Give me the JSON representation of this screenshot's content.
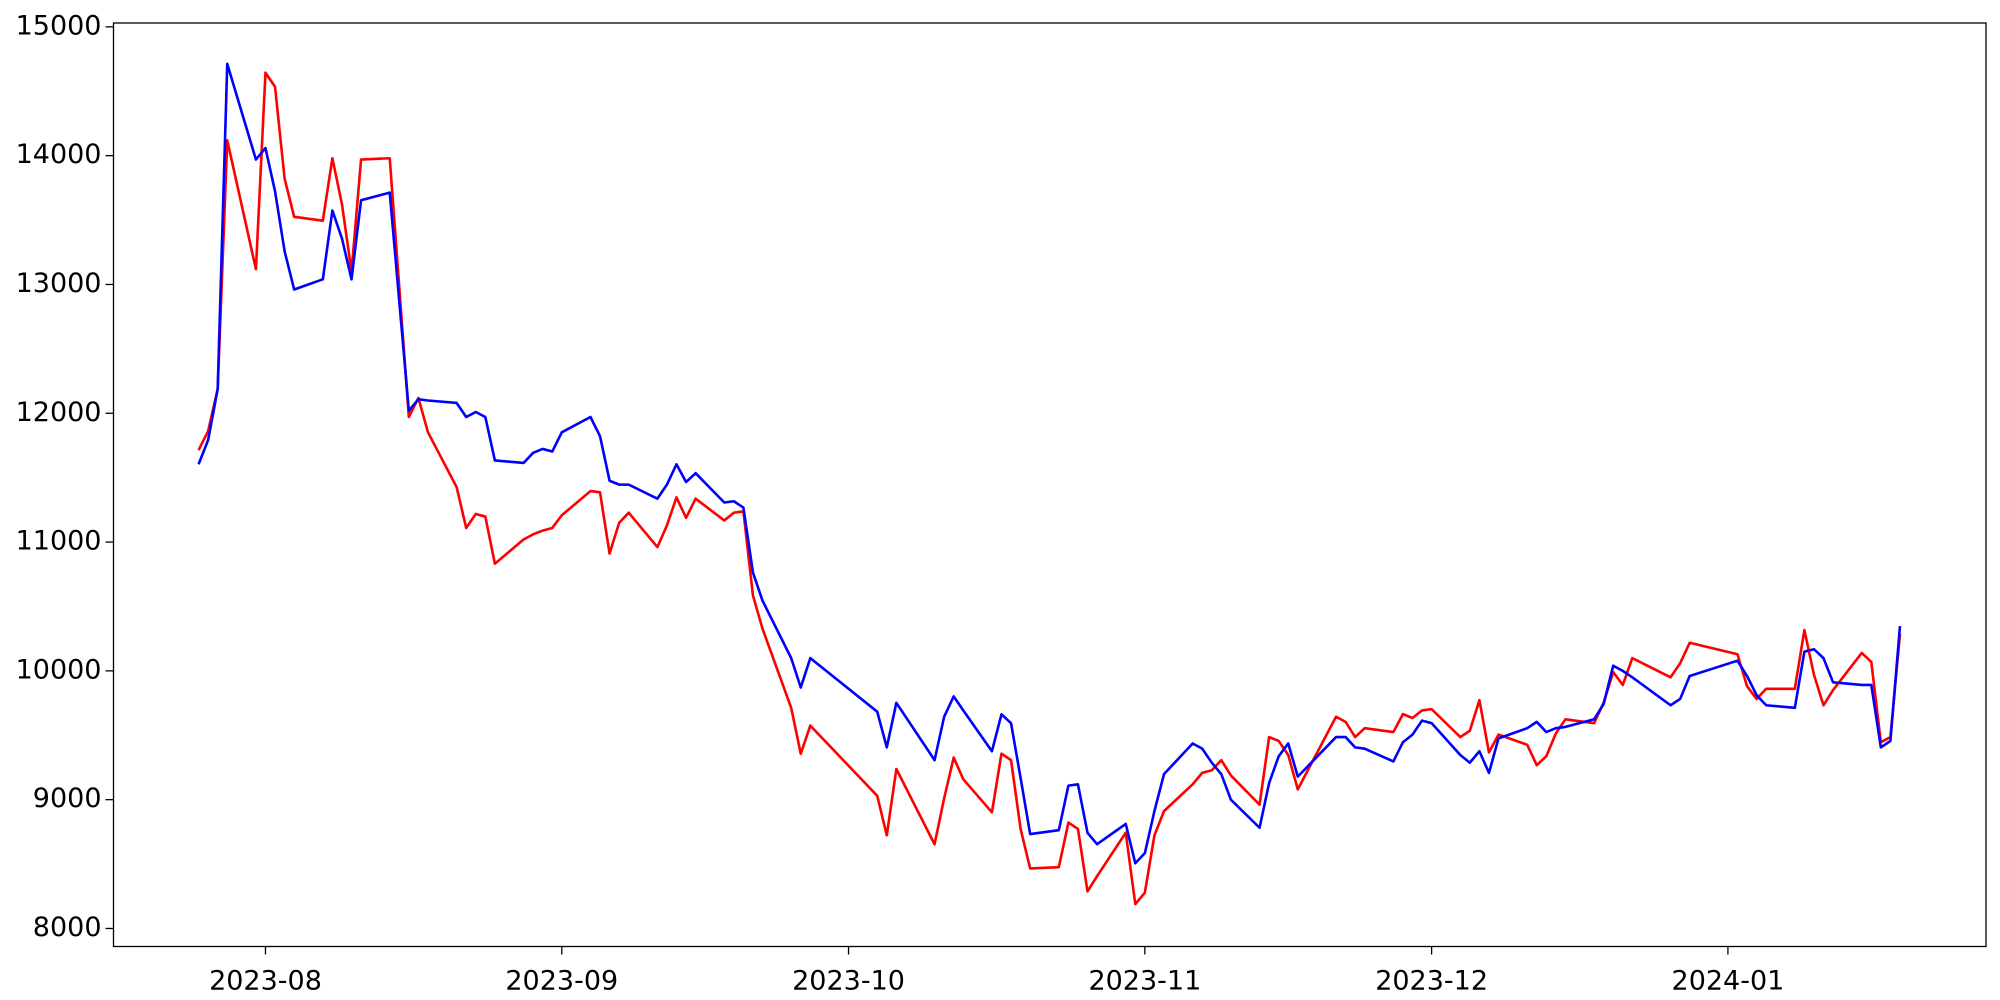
{
  "chart_data": {
    "type": "line",
    "x": [
      19563,
      19564,
      19565,
      19566,
      19569,
      19570,
      19571,
      19572,
      19573,
      19576,
      19577,
      19578,
      19579,
      19580,
      19583,
      19585,
      19586,
      19587,
      19590,
      19591,
      19592,
      19593,
      19594,
      19597,
      19598,
      19599,
      19600,
      19601,
      19604,
      19605,
      19606,
      19607,
      19608,
      19611,
      19612,
      19613,
      19614,
      19615,
      19618,
      19619,
      19620,
      19621,
      19622,
      19625,
      19626,
      19627,
      19634,
      19635,
      19636,
      19640,
      19641,
      19642,
      19643,
      19646,
      19647,
      19648,
      19649,
      19650,
      19653,
      19654,
      19655,
      19656,
      19657,
      19660,
      19661,
      19662,
      19663,
      19664,
      19667,
      19668,
      19669,
      19670,
      19671,
      19674,
      19675,
      19676,
      19677,
      19678,
      19682,
      19683,
      19684,
      19685,
      19688,
      19689,
      19690,
      19691,
      19692,
      19695,
      19696,
      19697,
      19698,
      19699,
      19702,
      19703,
      19704,
      19705,
      19706,
      19709,
      19710,
      19711,
      19712,
      19713,
      19717,
      19718,
      19719,
      19724,
      19725,
      19726,
      19727,
      19730,
      19731,
      19732,
      19733,
      19734,
      19737,
      19738,
      19739,
      19740,
      19741
    ],
    "series": [
      {
        "color": "#ff0000",
        "values": [
          11713,
          11862,
          12188,
          14119,
          13119,
          14644,
          14535,
          13822,
          13525,
          13495,
          13980,
          13624,
          13099,
          13970,
          13980,
          11971,
          12119,
          11852,
          11426,
          11109,
          11218,
          11198,
          10832,
          11020,
          11060,
          11089,
          11109,
          11208,
          11396,
          11386,
          10911,
          11149,
          11228,
          10961,
          11129,
          11347,
          11188,
          11337,
          11168,
          11228,
          11238,
          10585,
          10327,
          9713,
          9357,
          9575,
          9030,
          8723,
          9238,
          8654,
          9010,
          9327,
          9159,
          8902,
          9357,
          9307,
          8773,
          8466,
          8476,
          8822,
          8773,
          8288,
          8406,
          8743,
          8189,
          8278,
          8723,
          8911,
          9119,
          9208,
          9228,
          9307,
          9188,
          8961,
          9486,
          9456,
          9347,
          9080,
          9644,
          9604,
          9486,
          9555,
          9525,
          9664,
          9634,
          9693,
          9703,
          9486,
          9535,
          9773,
          9367,
          9505,
          9426,
          9268,
          9337,
          9515,
          9624,
          9594,
          9753,
          9990,
          9891,
          10099,
          9950,
          10059,
          10218,
          10129,
          9881,
          9782,
          9861,
          9861,
          10317,
          9970,
          9733,
          9851,
          10139,
          10069,
          9446,
          9486,
          10287
        ]
      },
      {
        "color": "#0000ff",
        "values": [
          11604,
          11792,
          12188,
          14713,
          13970,
          14059,
          13723,
          13258,
          12961,
          13040,
          13574,
          13357,
          13040,
          13654,
          13713,
          12020,
          12109,
          12099,
          12080,
          11971,
          12010,
          11971,
          11634,
          11614,
          11693,
          11723,
          11703,
          11852,
          11971,
          11822,
          11476,
          11446,
          11446,
          11337,
          11446,
          11604,
          11466,
          11535,
          11307,
          11317,
          11268,
          10763,
          10545,
          10099,
          9871,
          10099,
          9683,
          9406,
          9752,
          9307,
          9643,
          9802,
          9693,
          9376,
          9663,
          9594,
          9168,
          8733,
          8763,
          9109,
          9119,
          8743,
          8654,
          8812,
          8506,
          8585,
          8911,
          9198,
          9436,
          9396,
          9287,
          9198,
          9000,
          8782,
          9129,
          9337,
          9436,
          9179,
          9486,
          9486,
          9406,
          9396,
          9297,
          9446,
          9505,
          9614,
          9594,
          9347,
          9287,
          9376,
          9208,
          9476,
          9555,
          9604,
          9525,
          9555,
          9565,
          9624,
          9743,
          10040,
          10000,
          9950,
          9733,
          9782,
          9960,
          10079,
          9960,
          9812,
          9733,
          9713,
          10149,
          10168,
          10099,
          9911,
          9891,
          9891,
          9406,
          9456,
          10347
        ]
      }
    ],
    "xlim": [
      19554.1,
      19750
    ],
    "xticks": [
      {
        "value": 19570,
        "label": "2023-08"
      },
      {
        "value": 19601,
        "label": "2023-09"
      },
      {
        "value": 19631,
        "label": "2023-10"
      },
      {
        "value": 19662,
        "label": "2023-11"
      },
      {
        "value": 19692,
        "label": "2023-12"
      },
      {
        "value": 19723,
        "label": "2024-01"
      }
    ],
    "ylim": [
      7860,
      15030
    ],
    "yticks": [
      8000,
      9000,
      10000,
      11000,
      12000,
      13000,
      14000,
      15000
    ],
    "grid": false
  }
}
